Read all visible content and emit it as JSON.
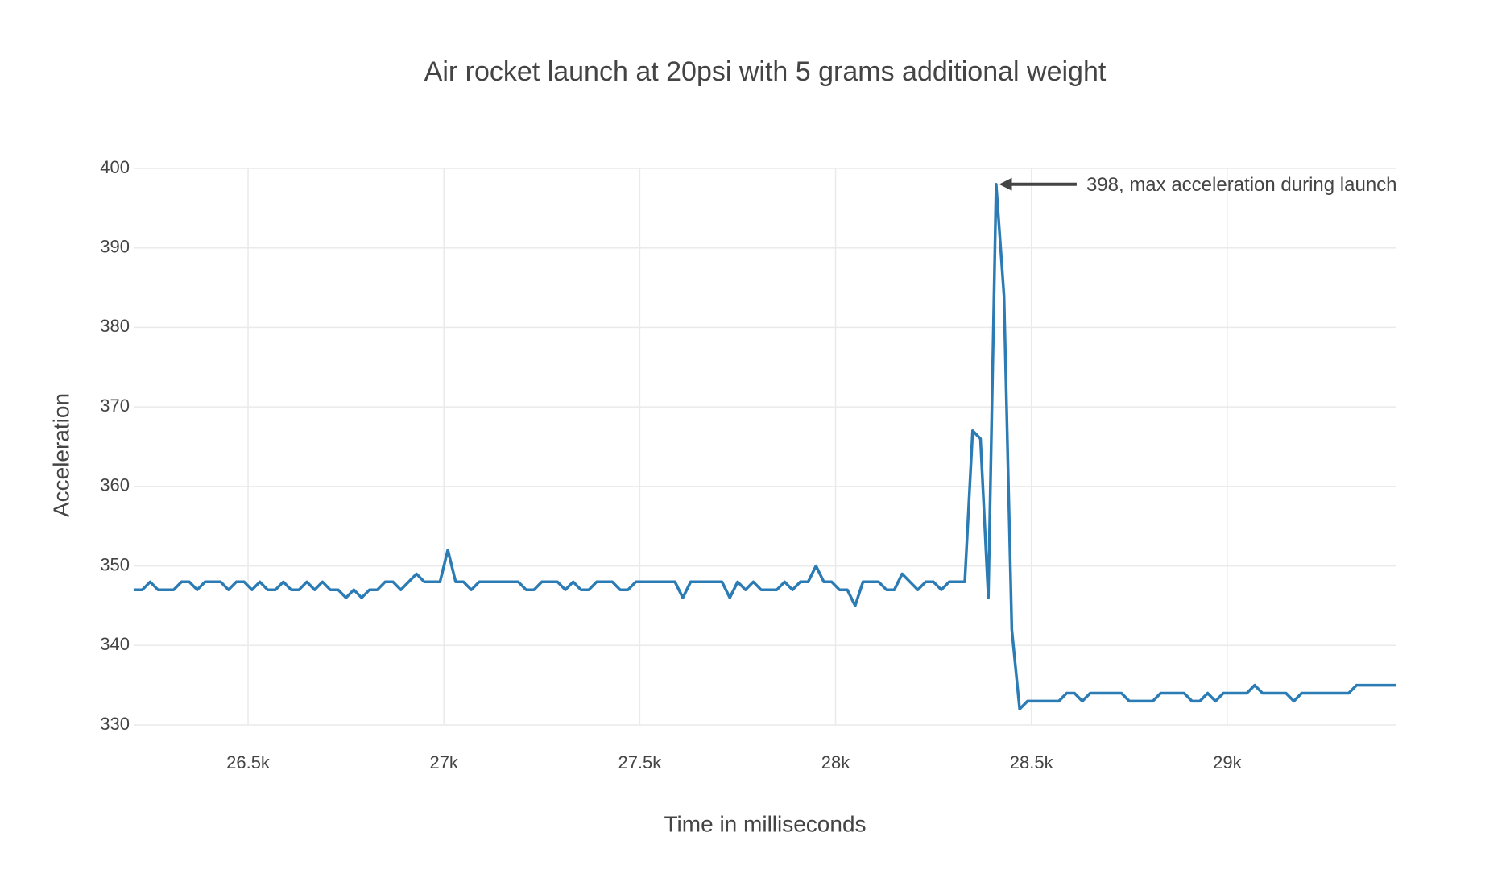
{
  "chart_data": {
    "type": "line",
    "title": "Air rocket launch at 20psi with 5 grams additional weight",
    "x_label": "Time in milliseconds",
    "y_label": "Acceleration",
    "xlim": [
      26210,
      29430
    ],
    "ylim": [
      330,
      400
    ],
    "xticks": [
      {
        "value": 26500,
        "label": "26.5k"
      },
      {
        "value": 27000,
        "label": "27k"
      },
      {
        "value": 27500,
        "label": "27.5k"
      },
      {
        "value": 28000,
        "label": "28k"
      },
      {
        "value": 28500,
        "label": "28.5k"
      },
      {
        "value": 29000,
        "label": "29k"
      }
    ],
    "yticks": [
      330,
      340,
      350,
      360,
      370,
      380,
      390,
      400
    ],
    "grid": true,
    "x": [
      26210,
      26230,
      26250,
      26270,
      26290,
      26310,
      26330,
      26350,
      26370,
      26390,
      26410,
      26430,
      26450,
      26470,
      26490,
      26510,
      26530,
      26550,
      26570,
      26590,
      26610,
      26630,
      26650,
      26670,
      26690,
      26710,
      26730,
      26750,
      26770,
      26790,
      26810,
      26830,
      26850,
      26870,
      26890,
      26910,
      26930,
      26950,
      26970,
      26990,
      27010,
      27030,
      27050,
      27070,
      27090,
      27110,
      27130,
      27150,
      27170,
      27190,
      27210,
      27230,
      27250,
      27270,
      27290,
      27310,
      27330,
      27350,
      27370,
      27390,
      27410,
      27430,
      27450,
      27470,
      27490,
      27510,
      27530,
      27550,
      27570,
      27590,
      27610,
      27630,
      27650,
      27670,
      27690,
      27710,
      27730,
      27750,
      27770,
      27790,
      27810,
      27830,
      27850,
      27870,
      27890,
      27910,
      27930,
      27950,
      27970,
      27990,
      28010,
      28030,
      28050,
      28070,
      28090,
      28110,
      28130,
      28150,
      28170,
      28190,
      28210,
      28230,
      28250,
      28270,
      28290,
      28310,
      28330,
      28350,
      28370,
      28390,
      28410,
      28430,
      28450,
      28470,
      28490,
      28510,
      28530,
      28550,
      28570,
      28590,
      28610,
      28630,
      28650,
      28670,
      28690,
      28710,
      28730,
      28750,
      28770,
      28790,
      28810,
      28830,
      28850,
      28870,
      28890,
      28910,
      28930,
      28950,
      28970,
      28990,
      29010,
      29030,
      29050,
      29070,
      29090,
      29110,
      29130,
      29150,
      29170,
      29190,
      29210,
      29230,
      29250,
      29270,
      29290,
      29310,
      29330,
      29350,
      29370,
      29390,
      29410,
      29430
    ],
    "series": [
      {
        "color": "#2b7bb4",
        "values": [
          347,
          347,
          348,
          347,
          347,
          347,
          348,
          348,
          347,
          348,
          348,
          348,
          347,
          348,
          348,
          347,
          348,
          347,
          347,
          348,
          347,
          347,
          348,
          347,
          348,
          347,
          347,
          346,
          347,
          346,
          347,
          347,
          348,
          348,
          347,
          348,
          349,
          348,
          348,
          348,
          352,
          348,
          348,
          347,
          348,
          348,
          348,
          348,
          348,
          348,
          347,
          347,
          348,
          348,
          348,
          347,
          348,
          347,
          347,
          348,
          348,
          348,
          347,
          347,
          348,
          348,
          348,
          348,
          348,
          348,
          346,
          348,
          348,
          348,
          348,
          348,
          346,
          348,
          347,
          348,
          347,
          347,
          347,
          348,
          347,
          348,
          348,
          350,
          348,
          348,
          347,
          347,
          345,
          348,
          348,
          348,
          347,
          347,
          349,
          348,
          347,
          348,
          348,
          347,
          348,
          348,
          348,
          367,
          366,
          346,
          398,
          384,
          342,
          332,
          333,
          333,
          333,
          333,
          333,
          334,
          334,
          333,
          334,
          334,
          334,
          334,
          334,
          333,
          333,
          333,
          333,
          334,
          334,
          334,
          334,
          333,
          333,
          334,
          333,
          334,
          334,
          334,
          334,
          335,
          334,
          334,
          334,
          334,
          333,
          334,
          334,
          334,
          334,
          334,
          334,
          334,
          335,
          335,
          335,
          335,
          335,
          335
        ]
      }
    ],
    "annotations": [
      {
        "text": "398,  max acceleration during launch",
        "x": 28410,
        "y": 398
      }
    ]
  }
}
